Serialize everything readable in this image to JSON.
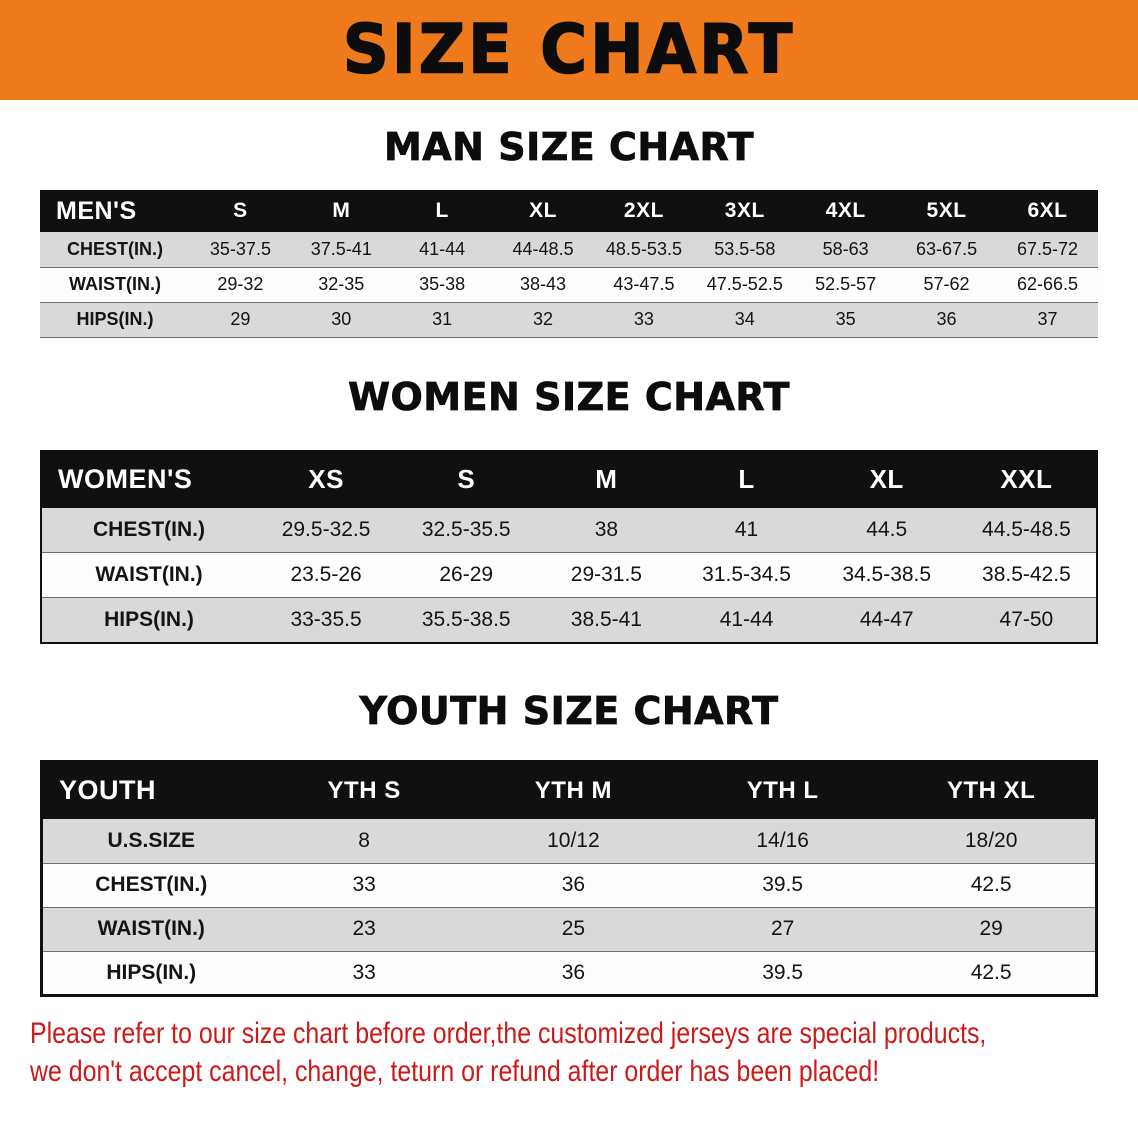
{
  "banner": {
    "title": "SIZE CHART"
  },
  "colors": {
    "banner_bg": "#ee7a1b",
    "header_bg": "#101010",
    "row_alt_bg": "#d9d9d9",
    "note_red": "#cb1a1a"
  },
  "men": {
    "heading": "MAN SIZE CHART",
    "table": {
      "header": [
        "MEN'S",
        "S",
        "M",
        "L",
        "XL",
        "2XL",
        "3XL",
        "4XL",
        "5XL",
        "6XL"
      ],
      "rows": [
        [
          "CHEST(IN.)",
          "35-37.5",
          "37.5-41",
          "41-44",
          "44-48.5",
          "48.5-53.5",
          "53.5-58",
          "58-63",
          "63-67.5",
          "67.5-72"
        ],
        [
          "WAIST(IN.)",
          "29-32",
          "32-35",
          "35-38",
          "38-43",
          "43-47.5",
          "47.5-52.5",
          "52.5-57",
          "57-62",
          "62-66.5"
        ],
        [
          "HIPS(IN.)",
          "29",
          "30",
          "31",
          "32",
          "33",
          "34",
          "35",
          "36",
          "37"
        ]
      ]
    }
  },
  "women": {
    "heading": "WOMEN SIZE CHART",
    "table": {
      "header": [
        "WOMEN'S",
        "XS",
        "S",
        "M",
        "L",
        "XL",
        "XXL"
      ],
      "rows": [
        [
          "CHEST(IN.)",
          "29.5-32.5",
          "32.5-35.5",
          "38",
          "41",
          "44.5",
          "44.5-48.5"
        ],
        [
          "WAIST(IN.)",
          "23.5-26",
          "26-29",
          "29-31.5",
          "31.5-34.5",
          "34.5-38.5",
          "38.5-42.5"
        ],
        [
          "HIPS(IN.)",
          "33-35.5",
          "35.5-38.5",
          "38.5-41",
          "41-44",
          "44-47",
          "47-50"
        ]
      ]
    }
  },
  "youth": {
    "heading": "YOUTH SIZE CHART",
    "table": {
      "header": [
        "YOUTH",
        "YTH S",
        "YTH M",
        "YTH L",
        "YTH XL"
      ],
      "rows": [
        [
          "U.S.SIZE",
          "8",
          "10/12",
          "14/16",
          "18/20"
        ],
        [
          "CHEST(IN.)",
          "33",
          "36",
          "39.5",
          "42.5"
        ],
        [
          "WAIST(IN.)",
          "23",
          "25",
          "27",
          "29"
        ],
        [
          "HIPS(IN.)",
          "33",
          "36",
          "39.5",
          "42.5"
        ]
      ]
    }
  },
  "footnote": {
    "line1": "Please refer to our size chart before order,the customized jerseys are special products,",
    "line2": "we don't accept cancel, change, teturn or refund after order has been placed!"
  }
}
